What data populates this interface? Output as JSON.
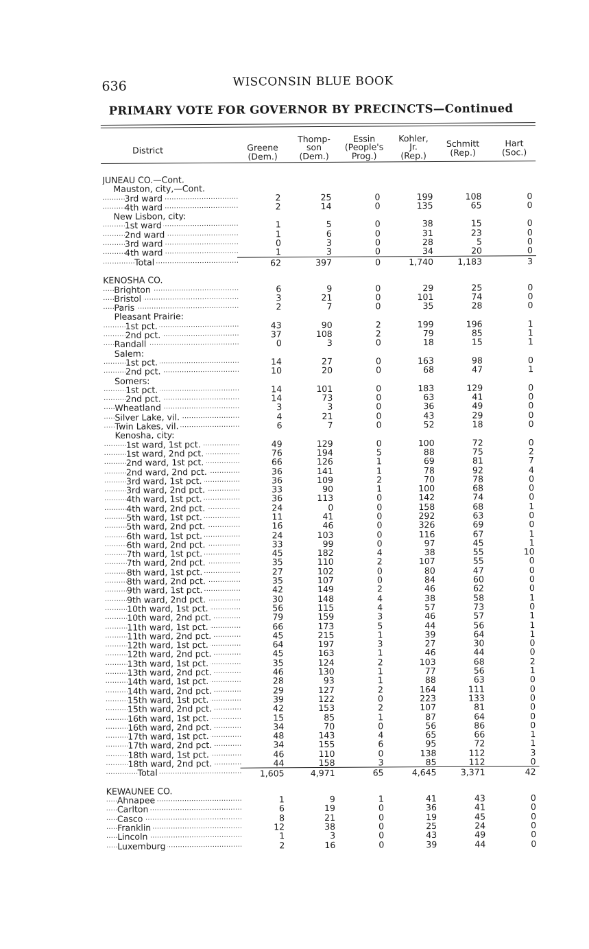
{
  "page_number": "636",
  "running_head": "WISCONSIN BLUE BOOK",
  "title": "PRIMARY VOTE FOR GOVERNOR BY PRECINCTS—Continued",
  "columns": [
    {
      "label": "District"
    },
    {
      "label": "Greene\n(Dem.)"
    },
    {
      "label": "Thomp-\nson\n(Dem.)"
    },
    {
      "label": "Essin\n(People's\nProg.)"
    },
    {
      "label": "Kohler,\nJr.\n(Rep.)"
    },
    {
      "label": "Schmitt\n(Rep.)"
    },
    {
      "label": "Hart\n(Soc.)"
    }
  ],
  "rows": [
    {
      "label": "JUNEAU CO.—Cont.",
      "indent": 0
    },
    {
      "label": "Mauston, city,—Cont.",
      "indent": 1
    },
    {
      "label": "3rd ward",
      "indent": 2,
      "values": [
        "2",
        "25",
        "0",
        "199",
        "108",
        "0"
      ]
    },
    {
      "label": "4th ward",
      "indent": 2,
      "values": [
        "2",
        "14",
        "0",
        "135",
        "65",
        "0"
      ]
    },
    {
      "label": "New Lisbon, city:",
      "indent": 1
    },
    {
      "label": "1st ward",
      "indent": 2,
      "values": [
        "1",
        "5",
        "0",
        "38",
        "15",
        "0"
      ]
    },
    {
      "label": "2nd ward",
      "indent": 2,
      "values": [
        "1",
        "6",
        "0",
        "31",
        "23",
        "0"
      ]
    },
    {
      "label": "3rd ward",
      "indent": 2,
      "values": [
        "0",
        "3",
        "0",
        "28",
        "5",
        "0"
      ]
    },
    {
      "label": "4th ward",
      "indent": 2,
      "values": [
        "1",
        "3",
        "0",
        "34",
        "20",
        "0"
      ]
    },
    {
      "label": "Total",
      "indent": 3,
      "total": true,
      "values": [
        "62",
        "397",
        "0",
        "1,740",
        "1,183",
        "3"
      ]
    },
    {
      "spacer": true
    },
    {
      "label": "KENOSHA CO.",
      "indent": 0
    },
    {
      "label": "Brighton",
      "indent": 1,
      "values": [
        "6",
        "9",
        "0",
        "29",
        "25",
        "0"
      ]
    },
    {
      "label": "Bristol",
      "indent": 1,
      "values": [
        "3",
        "21",
        "0",
        "101",
        "74",
        "0"
      ]
    },
    {
      "label": "Paris",
      "indent": 1,
      "values": [
        "2",
        "7",
        "0",
        "35",
        "28",
        "0"
      ]
    },
    {
      "label": "Pleasant Prairie:",
      "indent": 1
    },
    {
      "label": "1st pct.",
      "indent": 2,
      "values": [
        "43",
        "90",
        "2",
        "199",
        "196",
        "1"
      ]
    },
    {
      "label": "2nd pct.",
      "indent": 2,
      "values": [
        "37",
        "108",
        "2",
        "79",
        "85",
        "1"
      ]
    },
    {
      "label": "Randall",
      "indent": 1,
      "values": [
        "0",
        "3",
        "0",
        "18",
        "15",
        "1"
      ]
    },
    {
      "label": "Salem:",
      "indent": 1
    },
    {
      "label": "1st pct.",
      "indent": 2,
      "values": [
        "14",
        "27",
        "0",
        "163",
        "98",
        "0"
      ]
    },
    {
      "label": "2nd pct.",
      "indent": 2,
      "values": [
        "10",
        "20",
        "0",
        "68",
        "47",
        "1"
      ]
    },
    {
      "label": "Somers:",
      "indent": 1
    },
    {
      "label": "1st pct.",
      "indent": 2,
      "values": [
        "14",
        "101",
        "0",
        "183",
        "129",
        "0"
      ]
    },
    {
      "label": "2nd pct.",
      "indent": 2,
      "values": [
        "14",
        "73",
        "0",
        "63",
        "41",
        "0"
      ]
    },
    {
      "label": "Wheatland",
      "indent": 1,
      "values": [
        "3",
        "3",
        "0",
        "36",
        "49",
        "0"
      ]
    },
    {
      "label": "Silver Lake, vil.",
      "indent": 1,
      "values": [
        "4",
        "21",
        "0",
        "43",
        "29",
        "0"
      ]
    },
    {
      "label": "Twin Lakes, vil.",
      "indent": 1,
      "values": [
        "6",
        "7",
        "0",
        "52",
        "18",
        "0"
      ]
    },
    {
      "label": "Kenosha, city:",
      "indent": 1
    },
    {
      "label": "1st ward, 1st pct.",
      "indent": 2,
      "values": [
        "49",
        "129",
        "0",
        "100",
        "72",
        "0"
      ]
    },
    {
      "label": "1st ward, 2nd pct.",
      "indent": 2,
      "values": [
        "76",
        "194",
        "5",
        "88",
        "75",
        "2"
      ]
    },
    {
      "label": "2nd ward, 1st pct.",
      "indent": 2,
      "values": [
        "66",
        "126",
        "1",
        "69",
        "81",
        "7"
      ]
    },
    {
      "label": "2nd ward, 2nd pct.",
      "indent": 2,
      "values": [
        "36",
        "141",
        "1",
        "78",
        "92",
        "4"
      ]
    },
    {
      "label": "3rd ward, 1st pct.",
      "indent": 2,
      "values": [
        "36",
        "109",
        "2",
        "70",
        "78",
        "0"
      ]
    },
    {
      "label": "3rd ward, 2nd pct.",
      "indent": 2,
      "values": [
        "33",
        "90",
        "1",
        "100",
        "68",
        "0"
      ]
    },
    {
      "label": "4th ward, 1st pct.",
      "indent": 2,
      "values": [
        "36",
        "113",
        "0",
        "142",
        "74",
        "0"
      ]
    },
    {
      "label": "4th ward, 2nd pct.",
      "indent": 2,
      "values": [
        "24",
        "0",
        "0",
        "158",
        "68",
        "1"
      ]
    },
    {
      "label": "5th ward, 1st pct.",
      "indent": 2,
      "values": [
        "11",
        "41",
        "0",
        "292",
        "63",
        "0"
      ]
    },
    {
      "label": "5th ward, 2nd pct.",
      "indent": 2,
      "values": [
        "16",
        "46",
        "0",
        "326",
        "69",
        "0"
      ]
    },
    {
      "label": "6th ward, 1st pct.",
      "indent": 2,
      "values": [
        "24",
        "103",
        "0",
        "116",
        "67",
        "1"
      ]
    },
    {
      "label": "6th ward, 2nd pct.",
      "indent": 2,
      "values": [
        "33",
        "99",
        "0",
        "97",
        "45",
        "1"
      ]
    },
    {
      "label": "7th ward, 1st pct.",
      "indent": 2,
      "values": [
        "45",
        "182",
        "4",
        "38",
        "55",
        "10"
      ]
    },
    {
      "label": "7th ward, 2nd pct.",
      "indent": 2,
      "values": [
        "35",
        "110",
        "2",
        "107",
        "55",
        "0"
      ]
    },
    {
      "label": "8th ward, 1st pct.",
      "indent": 2,
      "values": [
        "27",
        "102",
        "0",
        "80",
        "47",
        "0"
      ]
    },
    {
      "label": "8th ward, 2nd pct.",
      "indent": 2,
      "values": [
        "35",
        "107",
        "0",
        "84",
        "60",
        "0"
      ]
    },
    {
      "label": "9th ward, 1st pct.",
      "indent": 2,
      "values": [
        "42",
        "149",
        "2",
        "46",
        "62",
        "0"
      ]
    },
    {
      "label": "9th ward, 2nd pct.",
      "indent": 2,
      "values": [
        "30",
        "148",
        "4",
        "38",
        "58",
        "1"
      ]
    },
    {
      "label": "10th ward, 1st pct.",
      "indent": 2,
      "values": [
        "56",
        "115",
        "4",
        "57",
        "73",
        "0"
      ]
    },
    {
      "label": "10th ward, 2nd pct.",
      "indent": 2,
      "values": [
        "79",
        "159",
        "3",
        "46",
        "57",
        "1"
      ]
    },
    {
      "label": "11th ward, 1st pct.",
      "indent": 2,
      "values": [
        "66",
        "173",
        "5",
        "44",
        "56",
        "1"
      ]
    },
    {
      "label": "11th ward, 2nd pct.",
      "indent": 2,
      "values": [
        "45",
        "215",
        "1",
        "39",
        "64",
        "1"
      ]
    },
    {
      "label": "12th ward, 1st pct.",
      "indent": 2,
      "values": [
        "64",
        "197",
        "3",
        "27",
        "30",
        "0"
      ]
    },
    {
      "label": "12th ward, 2nd pct.",
      "indent": 2,
      "values": [
        "45",
        "163",
        "1",
        "46",
        "44",
        "0"
      ]
    },
    {
      "label": "13th ward, 1st pct.",
      "indent": 2,
      "values": [
        "35",
        "124",
        "2",
        "103",
        "68",
        "2"
      ]
    },
    {
      "label": "13th ward, 2nd pct.",
      "indent": 2,
      "values": [
        "46",
        "130",
        "1",
        "77",
        "56",
        "1"
      ]
    },
    {
      "label": "14th ward, 1st pct.",
      "indent": 2,
      "values": [
        "28",
        "93",
        "1",
        "88",
        "63",
        "0"
      ]
    },
    {
      "label": "14th ward, 2nd pct.",
      "indent": 2,
      "values": [
        "29",
        "127",
        "2",
        "164",
        "111",
        "0"
      ]
    },
    {
      "label": "15th ward, 1st pct.",
      "indent": 2,
      "values": [
        "39",
        "122",
        "0",
        "223",
        "133",
        "0"
      ]
    },
    {
      "label": "15th ward, 2nd pct.",
      "indent": 2,
      "values": [
        "42",
        "153",
        "2",
        "107",
        "81",
        "0"
      ]
    },
    {
      "label": "16th ward, 1st pct.",
      "indent": 2,
      "values": [
        "15",
        "85",
        "1",
        "87",
        "64",
        "0"
      ]
    },
    {
      "label": "16th ward, 2nd pct.",
      "indent": 2,
      "values": [
        "34",
        "70",
        "0",
        "56",
        "86",
        "0"
      ]
    },
    {
      "label": "17th ward, 1st pct.",
      "indent": 2,
      "values": [
        "48",
        "143",
        "4",
        "65",
        "66",
        "1"
      ]
    },
    {
      "label": "17th ward, 2nd pct.",
      "indent": 2,
      "values": [
        "34",
        "155",
        "6",
        "95",
        "72",
        "1"
      ]
    },
    {
      "label": "18th ward, 1st pct.",
      "indent": 2,
      "values": [
        "46",
        "110",
        "0",
        "138",
        "112",
        "3"
      ]
    },
    {
      "label": "18th ward, 2nd pct.",
      "indent": 2,
      "values": [
        "44",
        "158",
        "3",
        "85",
        "112",
        "0"
      ]
    },
    {
      "label": "Total",
      "indent": 3,
      "total": true,
      "values": [
        "1,605",
        "4,971",
        "65",
        "4,645",
        "3,371",
        "42"
      ]
    },
    {
      "spacer": true
    },
    {
      "label": "KEWAUNEE CO.",
      "indent": 0
    },
    {
      "label": "Ahnapee",
      "indent": 1,
      "values": [
        "1",
        "9",
        "1",
        "41",
        "43",
        "0"
      ]
    },
    {
      "label": "Carlton",
      "indent": 1,
      "values": [
        "6",
        "19",
        "0",
        "36",
        "41",
        "0"
      ]
    },
    {
      "label": "Casco",
      "indent": 1,
      "values": [
        "8",
        "21",
        "0",
        "19",
        "45",
        "0"
      ]
    },
    {
      "label": "Franklin",
      "indent": 1,
      "values": [
        "12",
        "38",
        "0",
        "25",
        "24",
        "0"
      ]
    },
    {
      "label": "Lincoln",
      "indent": 1,
      "values": [
        "1",
        "3",
        "0",
        "43",
        "49",
        "0"
      ]
    },
    {
      "label": "Luxemburg",
      "indent": 1,
      "values": [
        "2",
        "16",
        "0",
        "39",
        "44",
        "0"
      ]
    }
  ]
}
